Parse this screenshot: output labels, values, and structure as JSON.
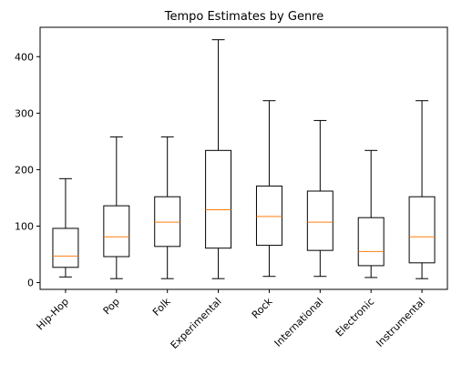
{
  "chart_data": {
    "type": "box",
    "title": "Tempo Estimates by Genre",
    "xlabel": "",
    "ylabel": "",
    "ylim": [
      -12,
      452
    ],
    "yticks": [
      0,
      100,
      200,
      300,
      400
    ],
    "categories": [
      "Hip-Hop",
      "Pop",
      "Folk",
      "Experimental",
      "Rock",
      "International",
      "Electronic",
      "Instrumental"
    ],
    "boxes": [
      {
        "whisker_low": 10,
        "q1": 27,
        "median": 47,
        "q3": 96,
        "whisker_high": 184
      },
      {
        "whisker_low": 7,
        "q1": 46,
        "median": 81,
        "q3": 136,
        "whisker_high": 258
      },
      {
        "whisker_low": 7,
        "q1": 64,
        "median": 107,
        "q3": 152,
        "whisker_high": 258
      },
      {
        "whisker_low": 7,
        "q1": 61,
        "median": 129,
        "q3": 234,
        "whisker_high": 430
      },
      {
        "whisker_low": 11,
        "q1": 66,
        "median": 117,
        "q3": 171,
        "whisker_high": 322
      },
      {
        "whisker_low": 11,
        "q1": 57,
        "median": 107,
        "q3": 162,
        "whisker_high": 287
      },
      {
        "whisker_low": 9,
        "q1": 30,
        "median": 55,
        "q3": 115,
        "whisker_high": 234
      },
      {
        "whisker_low": 7,
        "q1": 35,
        "median": 81,
        "q3": 152,
        "whisker_high": 322
      }
    ],
    "grid": false,
    "legend": "none",
    "colors": {
      "box": "#000000",
      "median": "#ff7f0e"
    }
  }
}
